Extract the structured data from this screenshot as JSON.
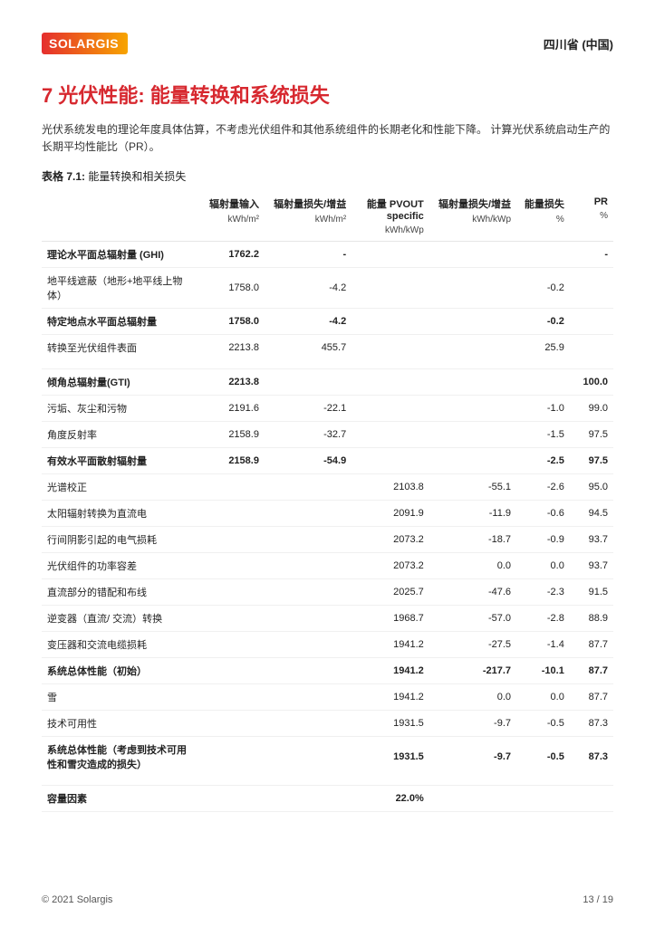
{
  "header": {
    "logo_text": "SOLARGIS",
    "location": "四川省 (中国)"
  },
  "title": "7  光伏性能: 能量转换和系统损失",
  "intro": "光伏系统发电的理论年度具体估算，不考虑光伏组件和其他系统组件的长期老化和性能下降。 计算光伏系统启动生产的长期平均性能比（PR）。",
  "table_caption_label": "表格 7.1:",
  "table_caption_text": "能量转换和相关损失",
  "columns": {
    "c0": "",
    "c1": "辐射量输入",
    "u1": "kWh/m²",
    "c2": "辐射量损失/增益",
    "u2": "kWh/m²",
    "c3": "能量 PVOUT specific",
    "u3": "kWh/kWp",
    "c4": "辐射量损失/增益",
    "u4": "kWh/kWp",
    "c5": "能量损失",
    "u5": "%",
    "c6": "PR",
    "u6": "%"
  },
  "rows": [
    {
      "bold": true,
      "cells": [
        "理论水平面总辐射量 (GHI)",
        "1762.2",
        "-",
        "",
        "",
        "",
        "-"
      ]
    },
    {
      "bold": false,
      "cells": [
        "地平线遮蔽（地形+地平线上物体）",
        "1758.0",
        "-4.2",
        "",
        "",
        "-0.2",
        ""
      ]
    },
    {
      "bold": true,
      "cells": [
        "特定地点水平面总辐射量",
        "1758.0",
        "-4.2",
        "",
        "",
        "-0.2",
        ""
      ]
    },
    {
      "bold": false,
      "section": true,
      "cells": [
        "转换至光伏组件表面",
        "2213.8",
        "455.7",
        "",
        "",
        "25.9",
        ""
      ]
    },
    {
      "spacer": true
    },
    {
      "bold": true,
      "cells": [
        "倾角总辐射量(GTI)",
        "2213.8",
        "",
        "",
        "",
        "",
        "100.0"
      ]
    },
    {
      "bold": false,
      "cells": [
        "污垢、灰尘和污物",
        "2191.6",
        "-22.1",
        "",
        "",
        "-1.0",
        "99.0"
      ]
    },
    {
      "bold": false,
      "cells": [
        "角度反射率",
        "2158.9",
        "-32.7",
        "",
        "",
        "-1.5",
        "97.5"
      ]
    },
    {
      "bold": true,
      "cells": [
        "有效水平面散射辐射量",
        "2158.9",
        "-54.9",
        "",
        "",
        "-2.5",
        "97.5"
      ]
    },
    {
      "bold": false,
      "cells": [
        "光谱校正",
        "",
        "",
        "2103.8",
        "-55.1",
        "-2.6",
        "95.0"
      ]
    },
    {
      "bold": false,
      "cells": [
        "太阳辐射转换为直流电",
        "",
        "",
        "2091.9",
        "-11.9",
        "-0.6",
        "94.5"
      ]
    },
    {
      "bold": false,
      "cells": [
        "行间阴影引起的电气损耗",
        "",
        "",
        "2073.2",
        "-18.7",
        "-0.9",
        "93.7"
      ]
    },
    {
      "bold": false,
      "cells": [
        "光伏组件的功率容差",
        "",
        "",
        "2073.2",
        "0.0",
        "0.0",
        "93.7"
      ]
    },
    {
      "bold": false,
      "cells": [
        "直流部分的错配和布线",
        "",
        "",
        "2025.7",
        "-47.6",
        "-2.3",
        "91.5"
      ]
    },
    {
      "bold": false,
      "cells": [
        "逆变器（直流/ 交流）转换",
        "",
        "",
        "1968.7",
        "-57.0",
        "-2.8",
        "88.9"
      ]
    },
    {
      "bold": false,
      "cells": [
        "变压器和交流电缆损耗",
        "",
        "",
        "1941.2",
        "-27.5",
        "-1.4",
        "87.7"
      ]
    },
    {
      "bold": true,
      "cells": [
        "系统总体性能（初始）",
        "",
        "",
        "1941.2",
        "-217.7",
        "-10.1",
        "87.7"
      ]
    },
    {
      "bold": false,
      "cells": [
        "雪",
        "",
        "",
        "1941.2",
        "0.0",
        "0.0",
        "87.7"
      ]
    },
    {
      "bold": false,
      "cells": [
        "技术可用性",
        "",
        "",
        "1931.5",
        "-9.7",
        "-0.5",
        "87.3"
      ]
    },
    {
      "bold": true,
      "section": true,
      "cells": [
        "系统总体性能（考虑到技术可用性和雪灾造成的损失）",
        "",
        "",
        "1931.5",
        "-9.7",
        "-0.5",
        "87.3"
      ]
    },
    {
      "spacer": true
    },
    {
      "bold": true,
      "cells": [
        "容量因素",
        "",
        "",
        "22.0%",
        "",
        "",
        ""
      ]
    }
  ],
  "footer": {
    "copyright": "© 2021 Solargis",
    "page": "13 / 19"
  }
}
